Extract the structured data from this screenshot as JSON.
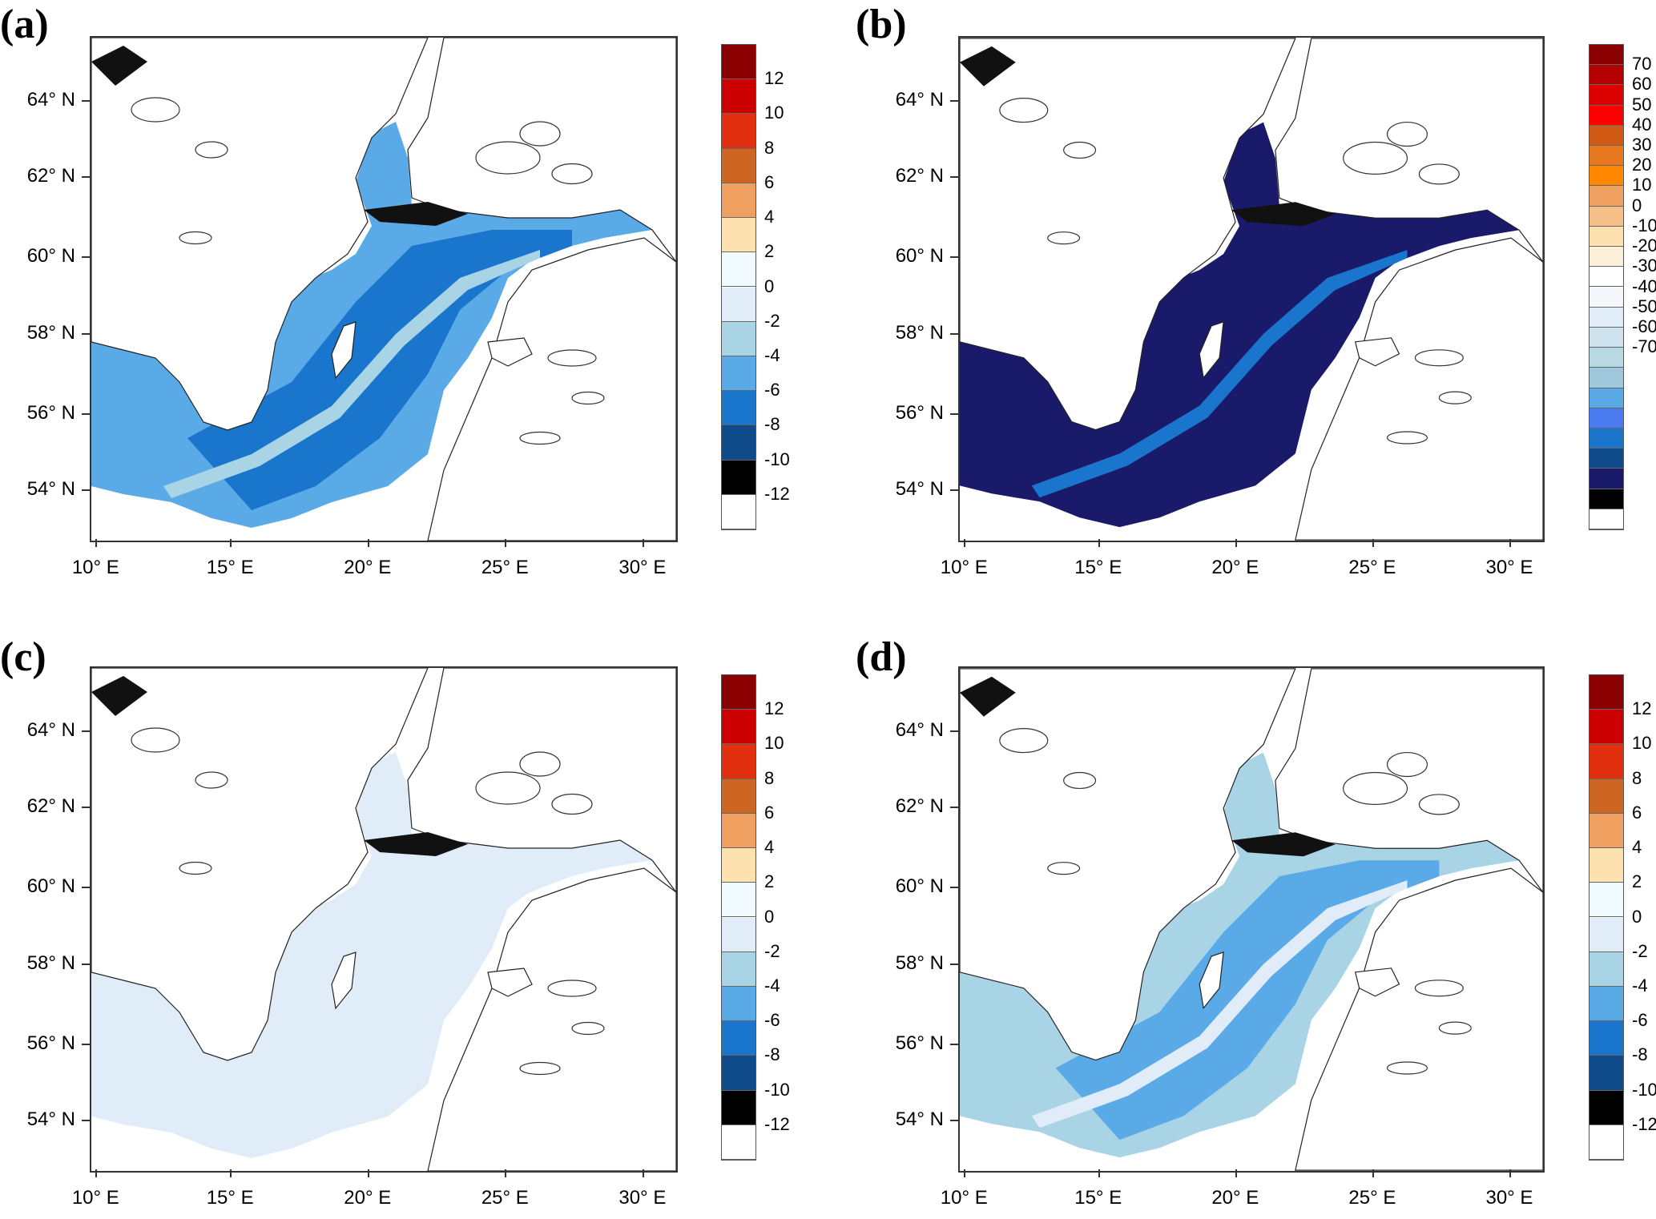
{
  "panels": [
    {
      "id": "a",
      "label": "(a)",
      "lat_labels": [
        "64° N",
        "62° N",
        "60° N",
        "58° N",
        "56° N",
        "54° N"
      ],
      "lon_labels": [
        "10° E",
        "15° E",
        "20° E",
        "25° E",
        "30° E"
      ],
      "colorbar": {
        "labels": [
          "12",
          "10",
          "8",
          "6",
          "4",
          "2",
          "0",
          "-2",
          "-4",
          "-6",
          "-8",
          "-10",
          "-12"
        ],
        "colors": [
          "#8b0000",
          "#cc0000",
          "#e03010",
          "#cc6622",
          "#f0a060",
          "#fde2b0",
          "#f0faff",
          "#e0ecf8",
          "#a8d4e6",
          "#5aaae8",
          "#1a75cc",
          "#0f4a8a",
          "#000000",
          "#ffffff"
        ]
      },
      "field_color": "#5aaae8",
      "field_dark": "#1a75cc",
      "field_light": "#a8d4e6"
    },
    {
      "id": "b",
      "label": "(b)",
      "lat_labels": [
        "64° N",
        "62° N",
        "60° N",
        "58° N",
        "56° N",
        "54° N"
      ],
      "lon_labels": [
        "10° E",
        "15° E",
        "20° E",
        "25° E",
        "30° E"
      ],
      "colorbar": {
        "labels": [
          "70",
          "60",
          "50",
          "40",
          "30",
          "20",
          "10",
          "0",
          "-10",
          "-20",
          "-30",
          "-40",
          "-50",
          "-60",
          "-70"
        ],
        "colors": [
          "#8b0000",
          "#b30000",
          "#dd0000",
          "#ff0000",
          "#d05a14",
          "#e87820",
          "#ff8800",
          "#f0a060",
          "#f6c088",
          "#fde2b0",
          "#fdf0d8",
          "#ffffff",
          "#f4f8fc",
          "#e0ecf8",
          "#cfe3ef",
          "#b8d8e4",
          "#a0c8dc",
          "#5aaae8",
          "#4a7cf0",
          "#1a75cc",
          "#0f4a8a",
          "#1a1a6a",
          "#000000",
          "#ffffff"
        ]
      },
      "field_color": "#1a1a6a",
      "field_dark": "#1a1a6a",
      "field_light": "#1a75cc"
    },
    {
      "id": "c",
      "label": "(c)",
      "lat_labels": [
        "64° N",
        "62° N",
        "60° N",
        "58° N",
        "56° N",
        "54° N"
      ],
      "lon_labels": [
        "10° E",
        "15° E",
        "20° E",
        "25° E",
        "30° E"
      ],
      "colorbar": {
        "labels": [
          "12",
          "10",
          "8",
          "6",
          "4",
          "2",
          "0",
          "-2",
          "-4",
          "-6",
          "-8",
          "-10",
          "-12"
        ],
        "colors": [
          "#8b0000",
          "#cc0000",
          "#e03010",
          "#cc6622",
          "#f0a060",
          "#fde2b0",
          "#f0faff",
          "#e0ecf8",
          "#a8d4e6",
          "#5aaae8",
          "#1a75cc",
          "#0f4a8a",
          "#000000",
          "#ffffff"
        ]
      },
      "field_color": "#e0ecf8",
      "field_dark": "#e0ecf8",
      "field_light": "#e0ecf8"
    },
    {
      "id": "d",
      "label": "(d)",
      "lat_labels": [
        "64° N",
        "62° N",
        "60° N",
        "58° N",
        "56° N",
        "54° N"
      ],
      "lon_labels": [
        "10° E",
        "15° E",
        "20° E",
        "25° E",
        "30° E"
      ],
      "colorbar": {
        "labels": [
          "12",
          "10",
          "8",
          "6",
          "4",
          "2",
          "0",
          "-2",
          "-4",
          "-6",
          "-8",
          "-10",
          "-12"
        ],
        "colors": [
          "#8b0000",
          "#cc0000",
          "#e03010",
          "#cc6622",
          "#f0a060",
          "#fde2b0",
          "#f0faff",
          "#e0ecf8",
          "#a8d4e6",
          "#5aaae8",
          "#1a75cc",
          "#0f4a8a",
          "#000000",
          "#ffffff"
        ]
      },
      "field_color": "#a8d4e6",
      "field_dark": "#5aaae8",
      "field_light": "#e0ecf8"
    }
  ]
}
